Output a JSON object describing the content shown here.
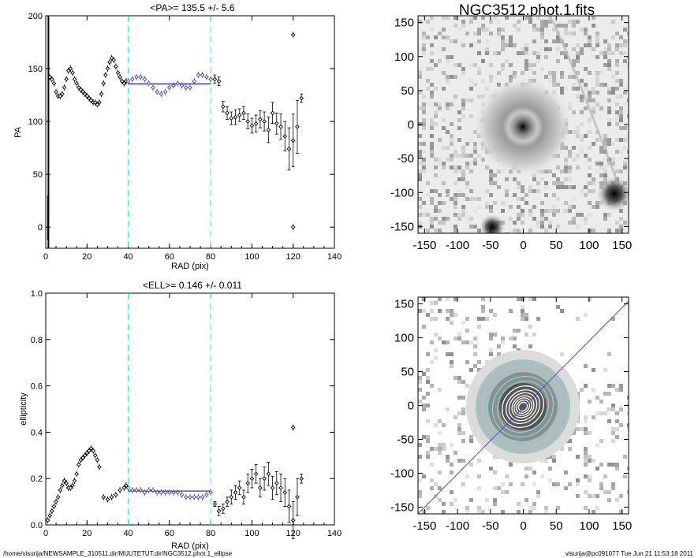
{
  "chart_data": [
    {
      "type": "scatter",
      "title": "<PA>= 135.5 +/-   5.6",
      "xlabel": "RAD (pix)",
      "ylabel": "PA",
      "xlim": [
        0,
        140
      ],
      "ylim": [
        -20,
        200
      ],
      "xticks": [
        0,
        20,
        40,
        60,
        80,
        100,
        120,
        140
      ],
      "yticks": [
        0,
        50,
        100,
        150,
        200
      ],
      "fit_range": [
        40,
        80
      ],
      "fit_value": 135.5,
      "series": [
        {
          "x": [
            2,
            3,
            4,
            5,
            6,
            7,
            8,
            9,
            10,
            11,
            12,
            13,
            14,
            15,
            16,
            17,
            18,
            19,
            20,
            21,
            22,
            23,
            24,
            25,
            26,
            27,
            28,
            29,
            30,
            31,
            32,
            33,
            34,
            35,
            36,
            37,
            38,
            39
          ],
          "y": [
            142,
            140,
            136,
            128,
            124,
            124,
            126,
            132,
            140,
            148,
            150,
            146,
            140,
            136,
            132,
            130,
            128,
            126,
            124,
            122,
            120,
            118,
            118,
            116,
            118,
            126,
            136,
            144,
            150,
            156,
            160,
            158,
            152,
            146,
            142,
            138,
            136,
            138
          ]
        },
        {
          "x": [
            40,
            42,
            44,
            46,
            48,
            50,
            52,
            54,
            56,
            58,
            60,
            62,
            64,
            66,
            68,
            70,
            72,
            74,
            76,
            78,
            80
          ],
          "y": [
            138,
            140,
            142,
            142,
            140,
            136,
            132,
            128,
            126,
            128,
            132,
            134,
            136,
            134,
            132,
            132,
            138,
            144,
            144,
            142,
            140
          ]
        },
        {
          "x": [
            82,
            84,
            86,
            88,
            90,
            92,
            94,
            96,
            98,
            100,
            102,
            104,
            106,
            108,
            110,
            112,
            114,
            116,
            118,
            120,
            122,
            124
          ],
          "y": [
            140,
            138,
            114,
            108,
            103,
            104,
            106,
            108,
            100,
            96,
            98,
            102,
            100,
            92,
            108,
            98,
            95,
            86,
            74,
            82,
            95,
            122
          ],
          "err": [
            4,
            4,
            5,
            6,
            6,
            7,
            6,
            6,
            7,
            7,
            8,
            8,
            9,
            12,
            10,
            10,
            12,
            14,
            20,
            25,
            25,
            4
          ]
        },
        {
          "x": [
            120
          ],
          "y": [
            182
          ]
        },
        {
          "x": [
            120
          ],
          "y": [
            0
          ]
        }
      ]
    },
    {
      "type": "scatter",
      "title": "<ELL>= 0.146 +/-  0.011",
      "xlabel": "RAD (pix)",
      "ylabel": "ellipticity",
      "xlim": [
        0,
        140
      ],
      "ylim": [
        0,
        1
      ],
      "xticks": [
        0,
        20,
        40,
        60,
        80,
        100,
        120,
        140
      ],
      "yticks": [
        0.0,
        0.2,
        0.4,
        0.6,
        0.8,
        1.0
      ],
      "fit_range": [
        40,
        80
      ],
      "fit_value": 0.146,
      "series": [
        {
          "x": [
            1,
            2,
            3,
            4,
            5,
            6,
            7,
            8,
            9,
            10,
            11,
            12,
            13,
            14,
            15,
            16,
            17,
            18,
            19,
            20,
            21,
            22,
            23,
            24,
            25,
            26,
            28,
            30,
            32,
            34,
            36,
            38,
            39
          ],
          "y": [
            0.02,
            0.04,
            0.06,
            0.08,
            0.1,
            0.12,
            0.15,
            0.17,
            0.19,
            0.18,
            0.16,
            0.16,
            0.17,
            0.19,
            0.22,
            0.26,
            0.28,
            0.29,
            0.3,
            0.31,
            0.32,
            0.33,
            0.32,
            0.3,
            0.28,
            0.25,
            0.12,
            0.11,
            0.12,
            0.13,
            0.15,
            0.16,
            0.17
          ]
        },
        {
          "x": [
            40,
            42,
            44,
            46,
            48,
            50,
            52,
            54,
            56,
            58,
            60,
            62,
            64,
            66,
            68,
            70,
            72,
            74,
            76,
            78,
            80
          ],
          "y": [
            0.16,
            0.15,
            0.15,
            0.15,
            0.14,
            0.15,
            0.15,
            0.14,
            0.14,
            0.14,
            0.14,
            0.14,
            0.14,
            0.13,
            0.12,
            0.12,
            0.12,
            0.12,
            0.12,
            0.13,
            0.14
          ]
        },
        {
          "x": [
            82,
            84,
            86,
            88,
            90,
            92,
            94,
            96,
            98,
            100,
            102,
            104,
            106,
            108,
            110,
            112,
            114,
            116,
            118,
            120,
            122,
            124
          ],
          "y": [
            0.09,
            0.06,
            0.07,
            0.1,
            0.12,
            0.14,
            0.16,
            0.12,
            0.18,
            0.2,
            0.22,
            0.16,
            0.2,
            0.22,
            0.16,
            0.18,
            0.16,
            0.14,
            0.08,
            0.02,
            0.12,
            0.2
          ],
          "err": [
            0.01,
            0.02,
            0.02,
            0.02,
            0.03,
            0.03,
            0.03,
            0.03,
            0.04,
            0.04,
            0.04,
            0.04,
            0.05,
            0.05,
            0.05,
            0.05,
            0.06,
            0.06,
            0.07,
            0.08,
            0.08,
            0.02
          ]
        },
        {
          "x": [
            120
          ],
          "y": [
            0.42
          ]
        }
      ]
    }
  ],
  "image_panels": {
    "top_title": "NGC3512.phot.1.fits",
    "ticks": [
      -150,
      -100,
      -50,
      0,
      50,
      100,
      150
    ],
    "range": [
      -160,
      160
    ]
  },
  "footer": {
    "left": "/home/visurija/NEWSAMPLE_310511.dir/MUUTETUT.dir/NGC3512.phot.1_ellipse",
    "right": "visurija@pc091077  Tue Jun 21 11:53:18 2011"
  },
  "colors": {
    "fit_line": "#1a1aa0",
    "markers_fit": "#4040c0",
    "guide_dashes": "#40e0e0",
    "contours_outer": "#7fd6d6",
    "contours_inner": "#ffffff",
    "pa_line": "#4b4bd8"
  }
}
